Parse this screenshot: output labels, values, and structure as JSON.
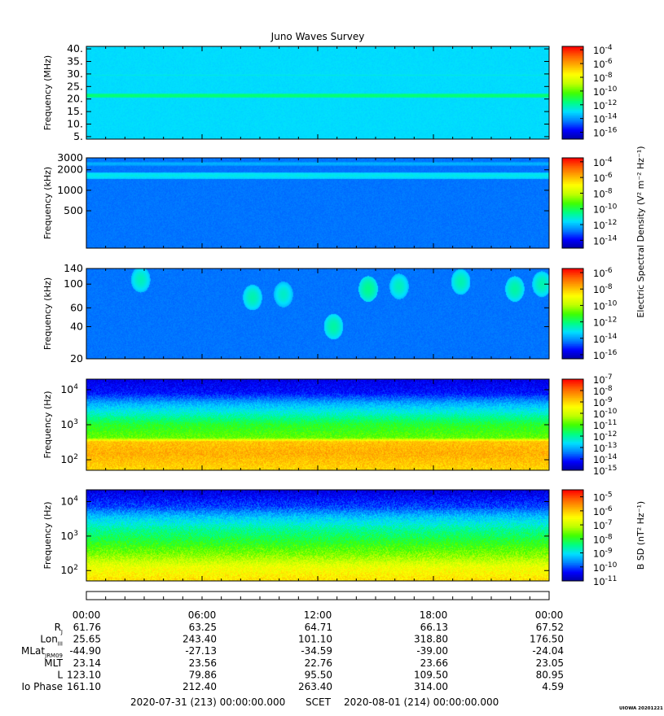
{
  "figure": {
    "title": "Juno Waves Survey",
    "stamp": "UIOWA 20201221",
    "colormap": [
      "#0000a0",
      "#0000ff",
      "#0080ff",
      "#00e0ff",
      "#00ff80",
      "#40ff00",
      "#c0ff00",
      "#ffff00",
      "#ffb000",
      "#ff6000",
      "#ff0000"
    ]
  },
  "chart_data": [
    {
      "type": "heatmap",
      "name": "panel-1",
      "ylabel": "Frequency (MHz)",
      "ylim": [
        4,
        41
      ],
      "yscale": "linear",
      "yticks": [
        {
          "v": 5,
          "l": "5."
        },
        {
          "v": 10,
          "l": "10."
        },
        {
          "v": 15,
          "l": "15."
        },
        {
          "v": 20,
          "l": "20."
        },
        {
          "v": 25,
          "l": "25."
        },
        {
          "v": 30,
          "l": "30."
        },
        {
          "v": 35,
          "l": "35."
        },
        {
          "v": 40,
          "l": "40."
        }
      ],
      "background_log10": -13.0,
      "features": [
        {
          "kind": "band",
          "at": 21.3,
          "width": 0.9,
          "log10": -11.4
        },
        {
          "kind": "band",
          "at": 29.5,
          "width": 0.5,
          "log10": -12.6
        },
        {
          "kind": "band",
          "at": 8.0,
          "width": 0.6,
          "log10": -13.3
        }
      ],
      "colorbar": {
        "ticks": [
          {
            "e": "-4",
            "v": -4
          },
          {
            "e": "-6",
            "v": -6
          },
          {
            "e": "-8",
            "v": -8
          },
          {
            "e": "-10",
            "v": -10
          },
          {
            "e": "-12",
            "v": -12
          },
          {
            "e": "-14",
            "v": -14
          },
          {
            "e": "-16",
            "v": -16
          }
        ],
        "range": [
          -17,
          -3.5
        ],
        "label": ""
      }
    },
    {
      "type": "heatmap",
      "name": "panel-2",
      "ylabel": "Frequency (kHz)",
      "ylim": [
        141,
        3000
      ],
      "yscale": "log",
      "yticks": [
        {
          "v": 500,
          "l": "500"
        },
        {
          "v": 1000,
          "l": "1000"
        },
        {
          "v": 2000,
          "l": "2000"
        },
        {
          "v": 3000,
          "l": "3000"
        }
      ],
      "background_log10": -12.8,
      "features": [
        {
          "kind": "band",
          "at": 1650,
          "width": 0.05,
          "log10": -11.3
        },
        {
          "kind": "band",
          "at": 2450,
          "width": 0.03,
          "log10": -12.0
        }
      ],
      "colorbar": {
        "ticks": [
          {
            "e": "-4",
            "v": -4
          },
          {
            "e": "-6",
            "v": -6
          },
          {
            "e": "-8",
            "v": -8
          },
          {
            "e": "-10",
            "v": -10
          },
          {
            "e": "-12",
            "v": -12
          },
          {
            "e": "-14",
            "v": -14
          }
        ],
        "range": [
          -15,
          -3.5
        ],
        "label": "Electric Spectral Density (V² m⁻² Hz⁻¹)"
      }
    },
    {
      "type": "heatmap",
      "name": "panel-3",
      "ylabel": "Frequency (kHz)",
      "ylim": [
        20,
        140
      ],
      "yscale": "log",
      "yticks": [
        {
          "v": 20,
          "l": "20"
        },
        {
          "v": 40,
          "l": "40"
        },
        {
          "v": 60,
          "l": "60"
        },
        {
          "v": 100,
          "l": "100"
        },
        {
          "v": 140,
          "l": "140"
        }
      ],
      "background_log10": -14.4,
      "features": [
        {
          "kind": "burst",
          "t": 2.8,
          "f": 110,
          "log10": -12.6
        },
        {
          "kind": "burst",
          "t": 8.6,
          "f": 75,
          "log10": -12.5
        },
        {
          "kind": "burst",
          "t": 10.2,
          "f": 80,
          "log10": -12.7
        },
        {
          "kind": "burst",
          "t": 12.8,
          "f": 40,
          "log10": -12.4
        },
        {
          "kind": "burst",
          "t": 14.6,
          "f": 90,
          "log10": -12.2
        },
        {
          "kind": "burst",
          "t": 16.2,
          "f": 95,
          "log10": -12.6
        },
        {
          "kind": "burst",
          "t": 19.4,
          "f": 105,
          "log10": -12.5
        },
        {
          "kind": "burst",
          "t": 22.2,
          "f": 90,
          "log10": -12.4
        },
        {
          "kind": "burst",
          "t": 23.6,
          "f": 100,
          "log10": -12.5
        }
      ],
      "colorbar": {
        "ticks": [
          {
            "e": "-6",
            "v": -6
          },
          {
            "e": "-8",
            "v": -8
          },
          {
            "e": "-10",
            "v": -10
          },
          {
            "e": "-12",
            "v": -12
          },
          {
            "e": "-14",
            "v": -14
          },
          {
            "e": "-16",
            "v": -16
          }
        ],
        "range": [
          -16.5,
          -5.5
        ],
        "label": ""
      }
    },
    {
      "type": "heatmap",
      "name": "panel-4",
      "ylabel": "Frequency (Hz)",
      "ylim": [
        50,
        20000
      ],
      "yscale": "log",
      "yticks": [
        {
          "v": 100,
          "l": "10",
          "e": "2"
        },
        {
          "v": 1000,
          "l": "10",
          "e": "3"
        },
        {
          "v": 10000,
          "l": "10",
          "e": "4"
        }
      ],
      "profile_log10": [
        {
          "f": 50,
          "v": -9.0
        },
        {
          "f": 150,
          "v": -8.6
        },
        {
          "f": 330,
          "v": -8.8
        },
        {
          "f": 420,
          "v": -10.8
        },
        {
          "f": 1000,
          "v": -11.3
        },
        {
          "f": 2200,
          "v": -12.3
        },
        {
          "f": 4000,
          "v": -13.0
        },
        {
          "f": 8000,
          "v": -14.1
        },
        {
          "f": 20000,
          "v": -14.4
        }
      ],
      "colorbar": {
        "ticks": [
          {
            "e": "-7",
            "v": -7
          },
          {
            "e": "-8",
            "v": -8
          },
          {
            "e": "-9",
            "v": -9
          },
          {
            "e": "-10",
            "v": -10
          },
          {
            "e": "-11",
            "v": -11
          },
          {
            "e": "-12",
            "v": -12
          },
          {
            "e": "-13",
            "v": -13
          },
          {
            "e": "-14",
            "v": -14
          },
          {
            "e": "-15",
            "v": -15
          }
        ],
        "range": [
          -15,
          -7
        ],
        "label": ""
      }
    },
    {
      "type": "heatmap",
      "name": "panel-5",
      "ylabel": "Frequency (Hz)",
      "ylim": [
        50,
        22000
      ],
      "yscale": "log",
      "yticks": [
        {
          "v": 100,
          "l": "10",
          "e": "2"
        },
        {
          "v": 1000,
          "l": "10",
          "e": "3"
        },
        {
          "v": 10000,
          "l": "10",
          "e": "4"
        }
      ],
      "profile_log10": [
        {
          "f": 50,
          "v": -6.2
        },
        {
          "f": 120,
          "v": -6.6
        },
        {
          "f": 250,
          "v": -7.3
        },
        {
          "f": 600,
          "v": -7.9
        },
        {
          "f": 1500,
          "v": -8.5
        },
        {
          "f": 3500,
          "v": -9.2
        },
        {
          "f": 7000,
          "v": -10.0
        },
        {
          "f": 22000,
          "v": -10.6
        }
      ],
      "colorbar": {
        "ticks": [
          {
            "e": "-5",
            "v": -5
          },
          {
            "e": "-6",
            "v": -6
          },
          {
            "e": "-7",
            "v": -7
          },
          {
            "e": "-8",
            "v": -8
          },
          {
            "e": "-9",
            "v": -9
          },
          {
            "e": "-10",
            "v": -10
          },
          {
            "e": "-11",
            "v": -11
          }
        ],
        "range": [
          -11,
          -4.5
        ],
        "label": "B SD (nT² Hz⁻¹)"
      }
    }
  ],
  "time_axis": {
    "hours_range": [
      0,
      24
    ],
    "labels": [
      {
        "h": 0,
        "text": "00:00"
      },
      {
        "h": 6,
        "text": "06:00"
      },
      {
        "h": 12,
        "text": "12:00"
      },
      {
        "h": 18,
        "text": "18:00"
      },
      {
        "h": 24,
        "text": "00:00"
      }
    ]
  },
  "ephemeris": [
    {
      "label": "R",
      "sub": "J",
      "values": [
        "61.76",
        "63.25",
        "64.71",
        "66.13",
        "67.52"
      ]
    },
    {
      "label": "Lon",
      "sub": "III",
      "values": [
        "25.65",
        "243.40",
        "101.10",
        "318.80",
        "176.50"
      ]
    },
    {
      "label": "MLat",
      "sub": "JRM09",
      "values": [
        "-44.90",
        "-27.13",
        "-34.59",
        "-39.00",
        "-24.04"
      ]
    },
    {
      "label": "MLT",
      "sub": "",
      "values": [
        "23.14",
        "23.56",
        "22.76",
        "23.66",
        "23.05"
      ]
    },
    {
      "label": "L",
      "sub": "",
      "values": [
        "123.10",
        "79.86",
        "95.50",
        "109.50",
        "80.95"
      ]
    },
    {
      "label": "Io Phase",
      "sub": "",
      "values": [
        "161.10",
        "212.40",
        "263.40",
        "314.00",
        "4.59"
      ]
    }
  ],
  "footer": {
    "start": "2020-07-31 (213) 00:00:00.000",
    "scet": "SCET",
    "end": "2020-08-01 (214) 00:00:00.000"
  }
}
